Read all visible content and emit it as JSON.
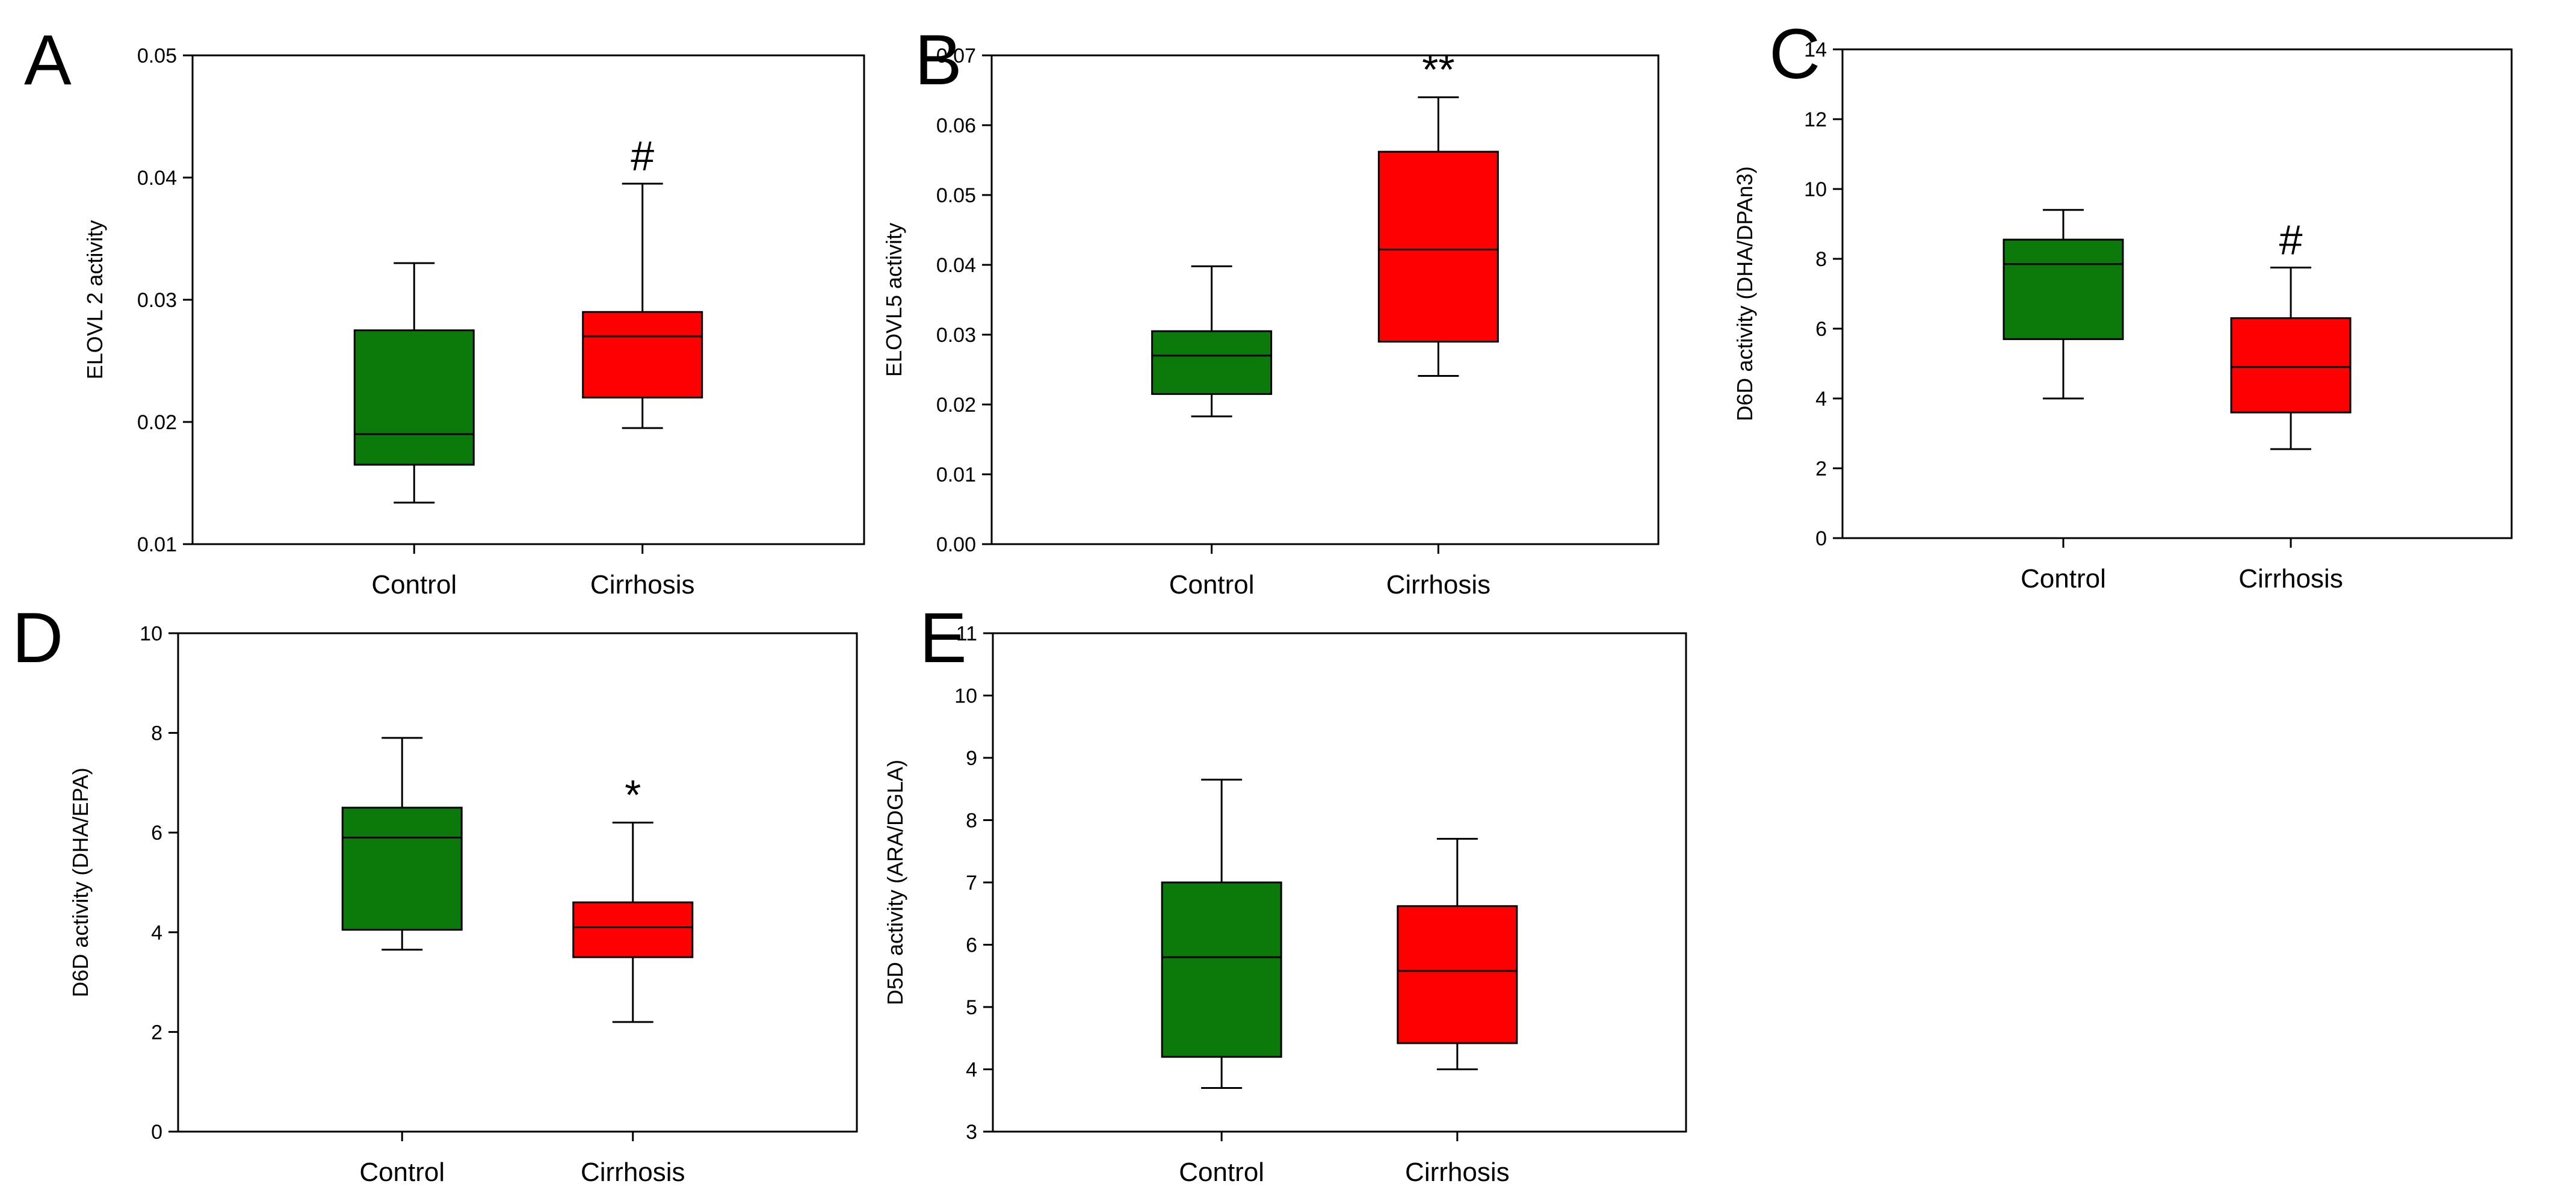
{
  "figure": {
    "panels": [
      "A",
      "B",
      "C",
      "D",
      "E"
    ],
    "style": {
      "control_color": "#0b7a0b",
      "cirrhosis_color": "#ff0000",
      "axis_color": "#000000",
      "background": "#ffffff"
    }
  },
  "chart_data": [
    {
      "panel": "A",
      "type": "box",
      "ylabel": "ELOVL 2 activity",
      "xlabel": "",
      "categories": [
        "Control",
        "Cirrhosis"
      ],
      "ylim": [
        0.01,
        0.05
      ],
      "yticks": [
        0.01,
        0.02,
        0.03,
        0.04,
        0.05
      ],
      "ytick_labels": [
        "0.01",
        "0.02",
        "0.03",
        "0.04",
        "0.05"
      ],
      "series": [
        {
          "name": "Control",
          "color": "#0b7a0b",
          "whisker_low": 0.0134,
          "q1": 0.0165,
          "median": 0.019,
          "q3": 0.0275,
          "whisker_high": 0.033,
          "marker": ""
        },
        {
          "name": "Cirrhosis",
          "color": "#ff0000",
          "whisker_low": 0.0195,
          "q1": 0.022,
          "median": 0.027,
          "q3": 0.029,
          "whisker_high": 0.0395,
          "marker": "#"
        }
      ]
    },
    {
      "panel": "B",
      "type": "box",
      "ylabel": "ELOVL5 activity",
      "xlabel": "",
      "categories": [
        "Control",
        "Cirrhosis"
      ],
      "ylim": [
        0.0,
        0.07
      ],
      "yticks": [
        0.0,
        0.01,
        0.02,
        0.03,
        0.04,
        0.05,
        0.06,
        0.07
      ],
      "ytick_labels": [
        "0.00",
        "0.01",
        "0.02",
        "0.03",
        "0.04",
        "0.05",
        "0.06",
        "0.07"
      ],
      "series": [
        {
          "name": "Control",
          "color": "#0b7a0b",
          "whisker_low": 0.0183,
          "q1": 0.0215,
          "median": 0.027,
          "q3": 0.0305,
          "whisker_high": 0.0398,
          "marker": ""
        },
        {
          "name": "Cirrhosis",
          "color": "#ff0000",
          "whisker_low": 0.0241,
          "q1": 0.029,
          "median": 0.0422,
          "q3": 0.0562,
          "whisker_high": 0.064,
          "marker": "**"
        }
      ]
    },
    {
      "panel": "C",
      "type": "box",
      "ylabel": "D6D activity (DHA/DPAn3)",
      "xlabel": "",
      "categories": [
        "Control",
        "Cirrhosis"
      ],
      "ylim": [
        0,
        14
      ],
      "yticks": [
        0,
        2,
        4,
        6,
        8,
        10,
        12,
        14
      ],
      "ytick_labels": [
        "0",
        "2",
        "4",
        "6",
        "8",
        "10",
        "12",
        "14"
      ],
      "series": [
        {
          "name": "Control",
          "color": "#0b7a0b",
          "whisker_low": 4.0,
          "q1": 5.7,
          "median": 7.85,
          "q3": 8.55,
          "whisker_high": 9.4,
          "marker": ""
        },
        {
          "name": "Cirrhosis",
          "color": "#ff0000",
          "whisker_low": 2.55,
          "q1": 3.6,
          "median": 4.9,
          "q3": 6.3,
          "whisker_high": 7.75,
          "marker": "#"
        }
      ]
    },
    {
      "panel": "D",
      "type": "box",
      "ylabel": "D6D activity (DHA/EPA)",
      "xlabel": "",
      "categories": [
        "Control",
        "Cirrhosis"
      ],
      "ylim": [
        0,
        10
      ],
      "yticks": [
        0,
        2,
        4,
        6,
        8,
        10
      ],
      "ytick_labels": [
        "0",
        "2",
        "4",
        "6",
        "8",
        "10"
      ],
      "series": [
        {
          "name": "Control",
          "color": "#0b7a0b",
          "whisker_low": 3.65,
          "q1": 4.05,
          "median": 5.9,
          "q3": 6.5,
          "whisker_high": 7.9,
          "marker": ""
        },
        {
          "name": "Cirrhosis",
          "color": "#ff0000",
          "whisker_low": 2.2,
          "q1": 3.5,
          "median": 4.1,
          "q3": 4.6,
          "whisker_high": 6.2,
          "marker": "*"
        }
      ]
    },
    {
      "panel": "E",
      "type": "box",
      "ylabel": "D5D activity (ARA/DGLA)",
      "xlabel": "",
      "categories": [
        "Control",
        "Cirrhosis"
      ],
      "ylim": [
        3,
        11
      ],
      "yticks": [
        3,
        4,
        5,
        6,
        7,
        8,
        9,
        10,
        11
      ],
      "ytick_labels": [
        "3",
        "4",
        "5",
        "6",
        "7",
        "8",
        "9",
        "10",
        "11"
      ],
      "series": [
        {
          "name": "Control",
          "color": "#0b7a0b",
          "whisker_low": 3.7,
          "q1": 4.2,
          "median": 5.8,
          "q3": 7.0,
          "whisker_high": 8.65,
          "marker": ""
        },
        {
          "name": "Cirrhosis",
          "color": "#ff0000",
          "whisker_low": 4.0,
          "q1": 4.42,
          "median": 5.58,
          "q3": 6.62,
          "whisker_high": 7.7,
          "marker": ""
        }
      ]
    }
  ]
}
